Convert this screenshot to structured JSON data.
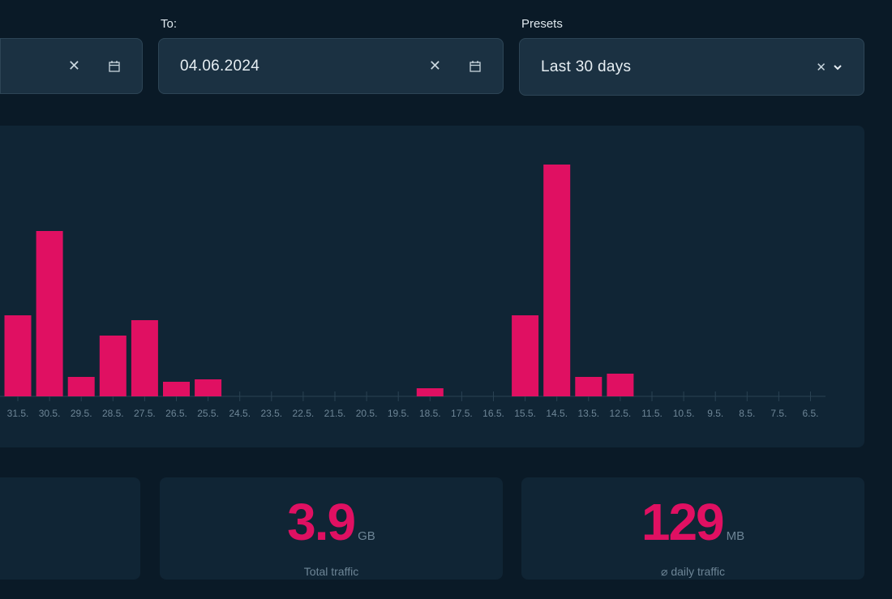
{
  "filters": {
    "to_label": "To:",
    "to_value": "04.06.2024",
    "presets_label": "Presets",
    "presets_value": "Last 30 days"
  },
  "icons": {
    "clear": "close-icon",
    "calendar": "calendar-icon",
    "dropdown": "chevron-down-icon"
  },
  "colors": {
    "bar": "#e01062",
    "background": "#0a1a27",
    "panel": "#102535"
  },
  "chart_data": {
    "type": "bar",
    "categories": [
      "31.5.",
      "30.5.",
      "29.5.",
      "28.5.",
      "27.5.",
      "26.5.",
      "25.5.",
      "24.5.",
      "23.5.",
      "22.5.",
      "21.5.",
      "20.5.",
      "19.5.",
      "18.5.",
      "17.5.",
      "16.5.",
      "15.5.",
      "14.5.",
      "13.5.",
      "12.5.",
      "11.5.",
      "10.5.",
      "9.5.",
      "8.5.",
      "7.5.",
      "6.5."
    ],
    "values": [
      100,
      204,
      24,
      75,
      94,
      18,
      21,
      0,
      0,
      0,
      0,
      0,
      0,
      10,
      0,
      0,
      100,
      286,
      24,
      28,
      0,
      0,
      0,
      0,
      0,
      0
    ],
    "grid": false
  },
  "stats": [
    {
      "value": "3.9",
      "unit": "GB",
      "label": "Total traffic"
    },
    {
      "value": "129",
      "unit": "MB",
      "label": "⌀ daily traffic"
    }
  ]
}
